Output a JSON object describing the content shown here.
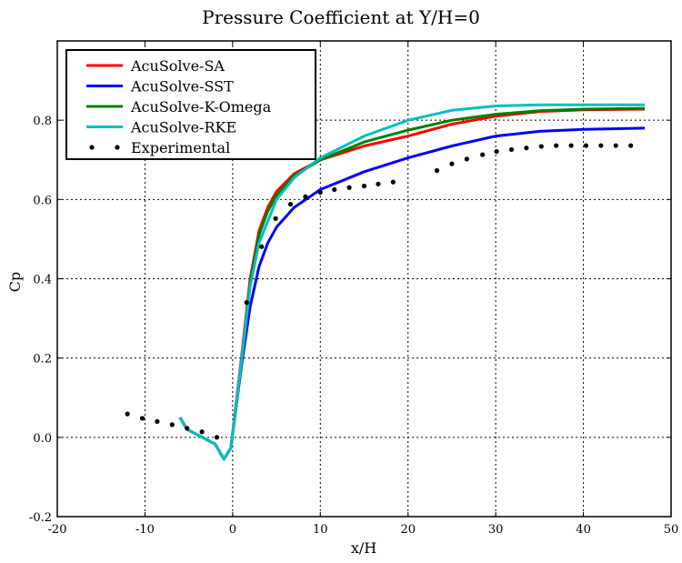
{
  "chart_data": {
    "type": "line",
    "title": "Pressure Coefficient at Y/H=0",
    "xlabel": "x/H",
    "ylabel": "Cp",
    "xlim": [
      -20,
      50
    ],
    "ylim": [
      -0.2,
      1.0
    ],
    "xticks": [
      -20,
      -10,
      0,
      10,
      20,
      30,
      40,
      50
    ],
    "yticks": [
      -0.2,
      0.0,
      0.2,
      0.4,
      0.6,
      0.8
    ],
    "ytick_labels": [
      "-0.2",
      "0.0",
      "0.2",
      "0.4",
      "0.6",
      "0.8"
    ],
    "grid": true,
    "legend_position": "top-left",
    "series": [
      {
        "name": "AcuSolve-SA",
        "color": "#ff0000",
        "style": "line",
        "x": [
          -6,
          -5.2,
          -2,
          -1,
          -0.2,
          1,
          2,
          3,
          4,
          5,
          7,
          10,
          15,
          20,
          25,
          30,
          35,
          40,
          47
        ],
        "y": [
          0.05,
          0.02,
          -0.017,
          -0.055,
          -0.027,
          0.2,
          0.4,
          0.52,
          0.58,
          0.62,
          0.665,
          0.7,
          0.735,
          0.76,
          0.79,
          0.81,
          0.822,
          0.826,
          0.828
        ]
      },
      {
        "name": "AcuSolve-SST",
        "color": "#0000ff",
        "style": "line",
        "x": [
          -6,
          -5.2,
          -2,
          -1,
          -0.2,
          1,
          2,
          3,
          4,
          5,
          7,
          10,
          15,
          20,
          25,
          30,
          35,
          40,
          47
        ],
        "y": [
          0.05,
          0.02,
          -0.017,
          -0.055,
          -0.027,
          0.18,
          0.33,
          0.43,
          0.49,
          0.53,
          0.58,
          0.625,
          0.67,
          0.705,
          0.735,
          0.76,
          0.772,
          0.777,
          0.78
        ]
      },
      {
        "name": "AcuSolve-K-Omega",
        "color": "#008000",
        "style": "line",
        "x": [
          -6,
          -5.2,
          -2,
          -1,
          -0.2,
          1,
          2,
          3,
          4,
          5,
          7,
          10,
          15,
          20,
          25,
          30,
          35,
          40,
          47
        ],
        "y": [
          0.05,
          0.02,
          -0.017,
          -0.055,
          -0.027,
          0.19,
          0.39,
          0.51,
          0.57,
          0.61,
          0.66,
          0.7,
          0.745,
          0.775,
          0.8,
          0.815,
          0.824,
          0.828,
          0.83
        ]
      },
      {
        "name": "AcuSolve-RKE",
        "color": "#00bfbf",
        "style": "line",
        "x": [
          -6,
          -5.2,
          -2,
          -1,
          -0.2,
          1,
          2,
          3,
          5,
          7,
          10,
          15,
          20,
          25,
          30,
          35,
          40,
          47
        ],
        "y": [
          0.05,
          0.02,
          -0.017,
          -0.055,
          -0.027,
          0.19,
          0.38,
          0.49,
          0.6,
          0.655,
          0.705,
          0.76,
          0.8,
          0.825,
          0.836,
          0.839,
          0.839,
          0.839
        ]
      },
      {
        "name": "Experimental",
        "color": "#000000",
        "style": "points",
        "x": [
          -12,
          -10.3,
          -8.6,
          -6.9,
          -5.2,
          -3.5,
          -1.8,
          1.6,
          3.3,
          4.9,
          6.6,
          8.3,
          10.0,
          11.6,
          13.3,
          15.0,
          16.6,
          18.3,
          23.3,
          25.0,
          26.7,
          28.5,
          30.1,
          31.8,
          33.5,
          35.2,
          36.9,
          38.6,
          40.3,
          42.0,
          43.7,
          45.4
        ],
        "y": [
          0.059,
          0.048,
          0.04,
          0.032,
          0.023,
          0.014,
          0.0,
          0.34,
          0.481,
          0.552,
          0.588,
          0.607,
          0.618,
          0.625,
          0.63,
          0.634,
          0.639,
          0.644,
          0.673,
          0.69,
          0.702,
          0.713,
          0.721,
          0.726,
          0.73,
          0.734,
          0.736,
          0.736,
          0.736,
          0.736,
          0.736,
          0.736
        ]
      }
    ]
  }
}
